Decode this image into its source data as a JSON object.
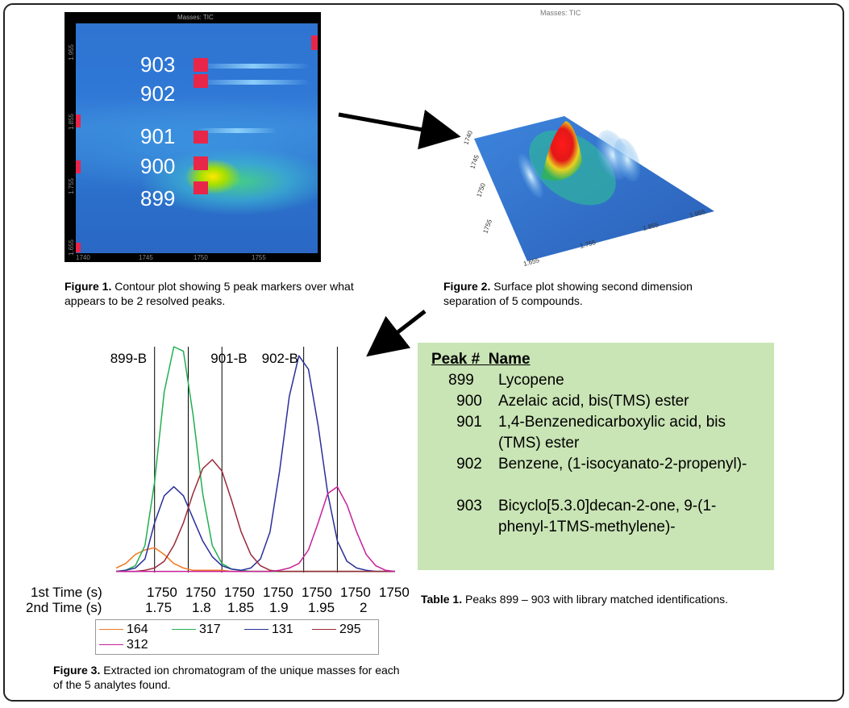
{
  "figure1": {
    "title": "Masses: TIC",
    "labels": [
      "903",
      "902",
      "901",
      "900",
      "899"
    ],
    "x_ticks": [
      "1740",
      "1745",
      "1750",
      "1755"
    ],
    "y_ticks": [
      "1.955",
      "1.855",
      "1.755",
      "1.655"
    ],
    "caption_bold": "Figure 1.",
    "caption_text": "Contour plot showing 5 peak markers over what appears to be 2 resolved peaks."
  },
  "figure2": {
    "title": "Masses: TIC",
    "y_ticks": [
      "1740",
      "1745",
      "1750",
      "1755"
    ],
    "x_ticks": [
      "1.655",
      "1.755",
      "1.855",
      "1.955"
    ],
    "caption_bold": "Figure 2.",
    "caption_text": "Surface plot showing second dimension separation of 5 compounds."
  },
  "table1": {
    "header": "Peak #  Name",
    "rows": [
      {
        "num": "899",
        "name": "Lycopene"
      },
      {
        "num": "900",
        "name": "Azelaic acid, bis(TMS) ester"
      },
      {
        "num": "901",
        "name": "1,4-Benzenedicarboxylic acid, bis (TMS) ester"
      },
      {
        "num": "902",
        "name": "Benzene, (1-isocyanato-2-propenyl)-"
      },
      {
        "num": "903",
        "name": "Bicyclo[5.3.0]decan-2-one, 9-(1-phenyl-1TMS-methylene)-"
      }
    ],
    "caption_bold": "Table 1.",
    "caption_text": "Peaks 899 – 903 with library matched identifications."
  },
  "figure3": {
    "caption_bold": "Figure 3.",
    "caption_text": "Extracted ion chromatogram of the unique masses for each of the 5 analytes found.",
    "row1_label": "1st Time (s)",
    "row2_label": "2nd Time (s)",
    "peak_labels": [
      "899-B",
      "901-B",
      "902-B"
    ]
  },
  "colors": {
    "s164": "#f07820",
    "s317": "#20b050",
    "s131": "#2a2f9a",
    "s295": "#9a2a3a",
    "s312": "#c8209a",
    "table_bg": "#c9e4b5",
    "marker": "#e8264a"
  },
  "chart_data": {
    "type": "line",
    "title": "",
    "xlabel": "",
    "ylabel": "",
    "x_ticks_1st": [
      "1750",
      "1750",
      "1750",
      "1750",
      "1750",
      "1750",
      "1750"
    ],
    "x_ticks_2nd": [
      "1.75",
      "1.8",
      "1.85",
      "1.9",
      "1.95",
      "2"
    ],
    "x": [
      1.71,
      1.72,
      1.73,
      1.74,
      1.75,
      1.76,
      1.77,
      1.78,
      1.79,
      1.8,
      1.81,
      1.82,
      1.83,
      1.84,
      1.85,
      1.86,
      1.87,
      1.88,
      1.89,
      1.9,
      1.91,
      1.92,
      1.93,
      1.94,
      1.95,
      1.96,
      1.97,
      1.98,
      1.99,
      2.0
    ],
    "vlines": [
      1.75,
      1.785,
      1.82,
      1.905,
      1.94
    ],
    "series": [
      {
        "name": "164",
        "values": [
          2,
          4,
          8,
          10,
          11,
          8,
          4,
          2,
          1,
          1,
          1,
          1,
          0.5,
          0.5,
          0.5,
          0.5,
          0.5,
          0.5,
          0.5,
          0.5,
          0.5,
          0.5,
          0.5,
          0.5,
          0.5,
          0.5,
          0.5,
          0.5,
          0.5,
          0.5
        ]
      },
      {
        "name": "317",
        "values": [
          0.5,
          1,
          3,
          12,
          40,
          80,
          100,
          98,
          70,
          35,
          12,
          4,
          1.5,
          1,
          0.5,
          0.5,
          0.5,
          0.5,
          0.5,
          0.5,
          0.5,
          0.5,
          0.5,
          0.5,
          0.5,
          0.5,
          0.5,
          0.5,
          0.5,
          0.5
        ]
      },
      {
        "name": "131",
        "values": [
          0.5,
          1,
          2,
          6,
          22,
          34,
          38,
          34,
          24,
          14,
          7,
          3,
          1.5,
          1,
          2,
          6,
          18,
          45,
          78,
          96,
          90,
          65,
          35,
          14,
          5,
          2,
          1,
          0.5,
          0.5,
          0.5
        ]
      },
      {
        "name": "295",
        "values": [
          0.5,
          0.5,
          0.5,
          1,
          2,
          5,
          12,
          22,
          35,
          46,
          50,
          45,
          32,
          18,
          8,
          3,
          1,
          0.5,
          0.5,
          0.5,
          0.5,
          0.5,
          0.5,
          0.5,
          0.5,
          0.5,
          0.5,
          0.5,
          0.5,
          0.5
        ]
      },
      {
        "name": "312",
        "values": [
          0.5,
          0.5,
          0.5,
          0.5,
          0.5,
          0.5,
          0.5,
          0.5,
          0.5,
          0.5,
          0.5,
          0.5,
          0.5,
          0.5,
          0.5,
          0.5,
          0.5,
          1,
          2,
          4,
          10,
          22,
          35,
          38,
          30,
          18,
          8,
          3,
          1,
          0.5
        ]
      }
    ],
    "legend_position": "bottom"
  }
}
